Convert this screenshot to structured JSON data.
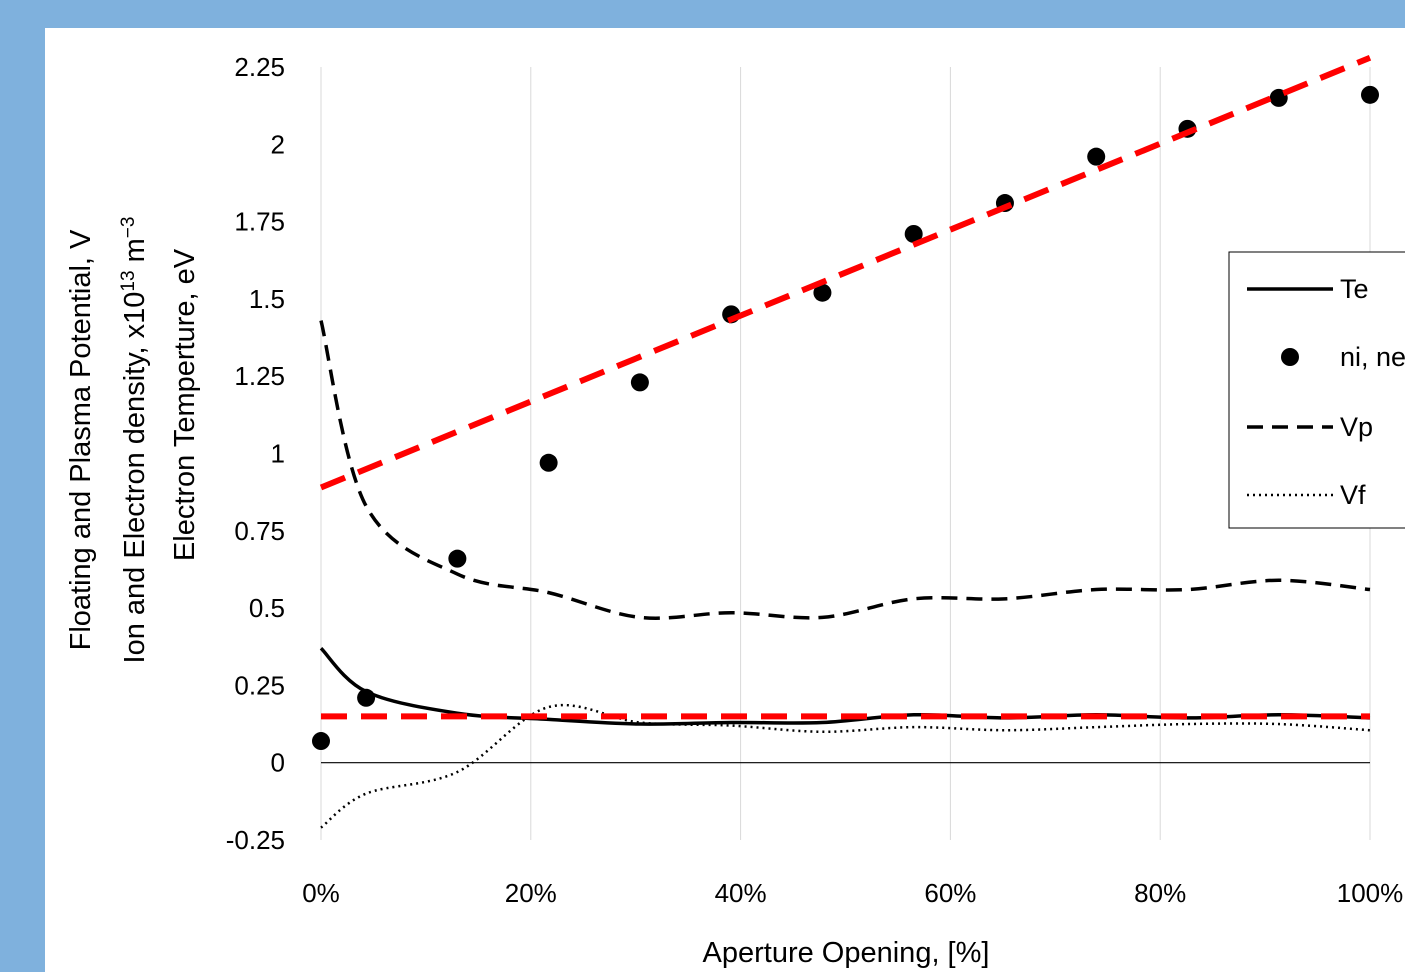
{
  "chart_data": {
    "type": "line",
    "xlabel": "Aperture Opening, [%]",
    "ylabel_lines": [
      "Floating and Plasma Potential, V",
      "Ion and Electron density, x10",
      "13",
      " m",
      "−3",
      "Electron Temperture, eV"
    ],
    "xlim": [
      0,
      100
    ],
    "ylim": [
      -0.25,
      2.25
    ],
    "x_ticks": [
      0,
      20,
      40,
      60,
      80,
      100
    ],
    "x_tick_labels": [
      "0%",
      "20%",
      "40%",
      "60%",
      "80%",
      "100%"
    ],
    "y_ticks": [
      -0.25,
      0,
      0.25,
      0.5,
      0.75,
      1,
      1.25,
      1.5,
      1.75,
      2,
      2.25
    ],
    "y_tick_labels": [
      "-0.25",
      "0",
      "0.25",
      "0.5",
      "0.75",
      "1",
      "1.25",
      "1.5",
      "1.75",
      "2",
      "2.25"
    ],
    "grid": "vertical",
    "legend_position": "right",
    "series": [
      {
        "name": "Te",
        "style": "solid",
        "color": "#000000",
        "x": [
          0,
          4.3,
          13.0,
          21.7,
          30.4,
          39.1,
          47.8,
          56.5,
          65.2,
          73.9,
          82.6,
          91.3,
          100
        ],
        "y": [
          0.37,
          0.23,
          0.16,
          0.14,
          0.125,
          0.13,
          0.13,
          0.155,
          0.145,
          0.155,
          0.145,
          0.155,
          0.145
        ]
      },
      {
        "name": "ni, ne",
        "style": "markers",
        "color": "#000000",
        "x": [
          0,
          4.3,
          13.0,
          21.7,
          30.4,
          39.1,
          47.8,
          56.5,
          65.2,
          73.9,
          82.6,
          91.3,
          100
        ],
        "y": [
          0.07,
          0.21,
          0.66,
          0.97,
          1.23,
          1.45,
          1.52,
          1.71,
          1.81,
          1.96,
          2.05,
          2.15,
          2.16
        ]
      },
      {
        "name": "Vp",
        "style": "dashed",
        "color": "#000000",
        "x": [
          0,
          4.3,
          13.0,
          21.7,
          30.4,
          39.1,
          47.8,
          56.5,
          65.2,
          73.9,
          82.6,
          91.3,
          100
        ],
        "y": [
          1.43,
          0.83,
          0.61,
          0.55,
          0.47,
          0.485,
          0.47,
          0.53,
          0.53,
          0.56,
          0.56,
          0.59,
          0.56
        ]
      },
      {
        "name": "Vf",
        "style": "dotted",
        "color": "#000000",
        "x": [
          0,
          4.3,
          13.0,
          21.7,
          30.4,
          39.1,
          47.8,
          56.5,
          65.2,
          73.9,
          82.6,
          91.3,
          100
        ],
        "y": [
          -0.21,
          -0.1,
          -0.03,
          0.18,
          0.13,
          0.12,
          0.1,
          0.115,
          0.105,
          0.115,
          0.125,
          0.125,
          0.105
        ]
      }
    ],
    "reference_lines": [
      {
        "style": "dashed",
        "color": "#ff0000",
        "x": [
          0,
          100
        ],
        "y": [
          0.89,
          2.28
        ]
      },
      {
        "style": "dashed",
        "color": "#ff0000",
        "x": [
          0,
          100
        ],
        "y": [
          0.15,
          0.15
        ]
      }
    ],
    "colors": {
      "page_border": "#7fb1dd",
      "plot_background": "#ffffff",
      "grid": "#d9d9d9",
      "fit_line": "#ff0000"
    }
  }
}
